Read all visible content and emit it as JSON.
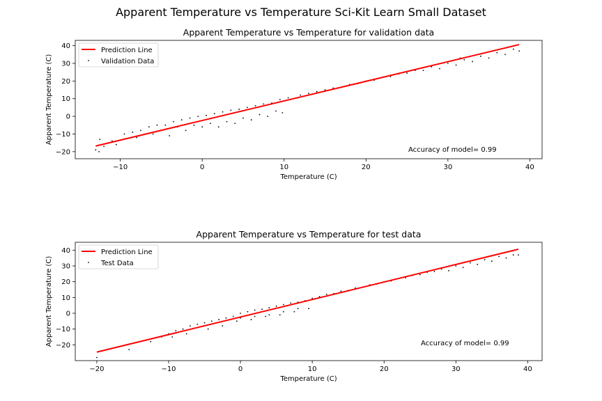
{
  "figure": {
    "suptitle": "Apparent Temperature vs Temperature Sci-Kit Learn Small Dataset"
  },
  "colors": {
    "prediction_line": "#ff0000",
    "data_points": "#000000"
  },
  "chart_data": [
    {
      "type": "scatter",
      "title": "Apparent Temperature vs Temperature for validation data",
      "xlabel": "Temperature (C)",
      "ylabel": "Apparent Temperature (C)",
      "xlim": [
        -15.5,
        41.5
      ],
      "ylim": [
        -24,
        43
      ],
      "xticks": [
        -10,
        0,
        10,
        20,
        30,
        40
      ],
      "yticks": [
        -20,
        -10,
        0,
        10,
        20,
        30,
        40
      ],
      "legend": {
        "placement": "top-left",
        "entries": [
          "Prediction Line",
          "Validation Data"
        ]
      },
      "annotation": "Accuracy of model= 0.99",
      "series": [
        {
          "name": "Prediction Line",
          "kind": "line",
          "x": [
            -13,
            38.7
          ],
          "y": [
            -16.8,
            40.6
          ]
        },
        {
          "name": "Validation Data",
          "kind": "scatter",
          "x": [
            -13,
            -12.6,
            -12,
            -11,
            -9.5,
            -8.5,
            -7.5,
            -6.5,
            -5.5,
            -4.5,
            -3.5,
            -2.5,
            -1.5,
            -0.5,
            0.5,
            1.5,
            2.5,
            3.5,
            4.5,
            5.5,
            6.5,
            7.5,
            8.5,
            9.5,
            10.5,
            12,
            14,
            16,
            18,
            20,
            22,
            24,
            26,
            28,
            30,
            32,
            34,
            36,
            38,
            -12.5,
            -10.5,
            -8,
            -6,
            -4,
            -2,
            0,
            2,
            4,
            6,
            8,
            9.8,
            -3,
            -1,
            1,
            3,
            5,
            7,
            9,
            27,
            29,
            31,
            33,
            35,
            37,
            38.7,
            31.5,
            35.5,
            13,
            15,
            17,
            19,
            21,
            23,
            25
          ],
          "y": [
            -19,
            -20,
            -17,
            -14,
            -10,
            -9,
            -8,
            -6,
            -5,
            -5,
            -3,
            -2,
            -1,
            0,
            0.5,
            1.5,
            2.5,
            3.5,
            4,
            5,
            6,
            7,
            7.5,
            9.5,
            10.5,
            12,
            14,
            16,
            18,
            20,
            22,
            24,
            26,
            28,
            30,
            32,
            34,
            36,
            38,
            -13,
            -16,
            -12,
            -10,
            -11,
            -8,
            -6,
            -6,
            -4,
            -2,
            0,
            2,
            -6,
            -5,
            -4,
            -3,
            -1,
            1,
            3,
            26,
            27,
            29,
            31,
            33,
            35,
            37,
            33,
            37,
            13,
            15,
            16.5,
            18.5,
            20.5,
            22.5,
            24.5
          ]
        }
      ]
    },
    {
      "type": "scatter",
      "title": "Apparent Temperature vs Temperature for test data",
      "xlabel": "Temperature (C)",
      "ylabel": "Apparent Temperature (C)",
      "xlim": [
        -23,
        42
      ],
      "ylim": [
        -30,
        45
      ],
      "xticks": [
        -20,
        -10,
        0,
        10,
        20,
        30,
        40
      ],
      "yticks": [
        -20,
        -10,
        0,
        10,
        20,
        30,
        40
      ],
      "legend": {
        "placement": "top-left",
        "entries": [
          "Prediction Line",
          "Test Data"
        ]
      },
      "annotation": "Accuracy of model= 0.99",
      "series": [
        {
          "name": "Prediction Line",
          "kind": "line",
          "x": [
            -20,
            38.7
          ],
          "y": [
            -24.6,
            40.6
          ]
        },
        {
          "name": "Test Data",
          "kind": "scatter",
          "x": [
            -20,
            -15.5,
            -12.5,
            -11,
            -10,
            -9,
            -8,
            -7,
            -6,
            -5,
            -4,
            -3,
            -2,
            -1,
            0,
            1,
            2,
            3,
            4,
            5,
            6,
            7,
            8,
            9,
            10,
            12,
            14,
            16,
            18,
            20,
            22,
            24,
            26,
            28,
            30,
            32,
            34,
            36,
            38,
            -9.5,
            -7.5,
            -4.5,
            -2.5,
            -0.5,
            1.5,
            3.5,
            5.5,
            7.5,
            9.5,
            0,
            2,
            4,
            6,
            8,
            29,
            31,
            33,
            35,
            37,
            38.7,
            11,
            13,
            15,
            17,
            19,
            21,
            23,
            25,
            27
          ],
          "y": [
            -28,
            -23,
            -18,
            -15,
            -13,
            -11,
            -10,
            -8,
            -7,
            -6,
            -5,
            -4,
            -3,
            -2,
            0,
            1,
            2,
            2.5,
            3.5,
            4.5,
            5.5,
            6.5,
            7,
            8,
            9.5,
            12,
            14,
            16,
            18,
            20,
            22,
            24,
            26,
            28,
            30,
            32,
            34,
            36,
            37,
            -15,
            -13,
            -10,
            -8,
            -5,
            -4,
            -2,
            -1,
            1,
            3,
            -3,
            -2,
            -1,
            1,
            3,
            27,
            29,
            31,
            33,
            35,
            37,
            10.5,
            12.5,
            14.5,
            16.5,
            18.5,
            20.5,
            22.5,
            24.5,
            26.5
          ]
        }
      ]
    }
  ]
}
